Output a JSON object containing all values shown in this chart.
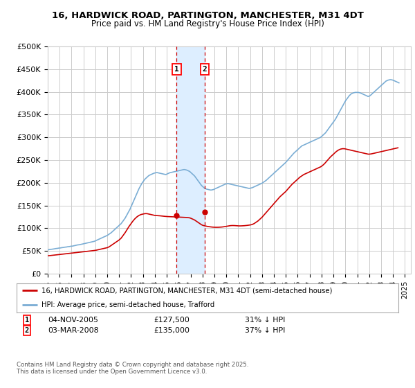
{
  "title": "16, HARDWICK ROAD, PARTINGTON, MANCHESTER, M31 4DT",
  "subtitle": "Price paid vs. HM Land Registry's House Price Index (HPI)",
  "red_label": "16, HARDWICK ROAD, PARTINGTON, MANCHESTER, M31 4DT (semi-detached house)",
  "blue_label": "HPI: Average price, semi-detached house, Trafford",
  "footnote": "Contains HM Land Registry data © Crown copyright and database right 2025.\nThis data is licensed under the Open Government Licence v3.0.",
  "transaction1": {
    "label": "1",
    "date": "04-NOV-2005",
    "price": "£127,500",
    "note": "31% ↓ HPI"
  },
  "transaction2": {
    "label": "2",
    "date": "03-MAR-2008",
    "price": "£135,000",
    "note": "37% ↓ HPI"
  },
  "marker1_x": 2005.83,
  "marker2_x": 2008.17,
  "marker1_price": 127500,
  "marker2_price": 135000,
  "ylim": [
    0,
    500000
  ],
  "xlim": [
    1995,
    2025.5
  ],
  "yticks": [
    0,
    50000,
    100000,
    150000,
    200000,
    250000,
    300000,
    350000,
    400000,
    450000,
    500000
  ],
  "ytick_labels": [
    "£0",
    "£50K",
    "£100K",
    "£150K",
    "£200K",
    "£250K",
    "£300K",
    "£350K",
    "£400K",
    "£450K",
    "£500K"
  ],
  "background_color": "#ffffff",
  "grid_color": "#cccccc",
  "red_color": "#cc0000",
  "blue_color": "#7aadd4",
  "shade_color": "#ddeeff",
  "hpi_monthly": {
    "start_year": 1995,
    "start_month": 1,
    "values": [
      52000,
      52500,
      53000,
      53200,
      53500,
      53800,
      54000,
      54500,
      55000,
      55200,
      55500,
      56000,
      56200,
      56500,
      57000,
      57200,
      57500,
      58000,
      58200,
      58500,
      59000,
      59200,
      59500,
      60000,
      60200,
      60500,
      61000,
      61500,
      62000,
      62500,
      63000,
      63200,
      63500,
      64000,
      64500,
      65000,
      65500,
      66000,
      66500,
      67000,
      67500,
      68000,
      68500,
      69000,
      69500,
      70000,
      70500,
      71000,
      72000,
      73000,
      74000,
      75000,
      76000,
      77000,
      78000,
      79000,
      80000,
      81000,
      82000,
      83000,
      84000,
      85500,
      87000,
      88500,
      90000,
      92000,
      94000,
      96000,
      98000,
      100000,
      102000,
      104000,
      106000,
      108000,
      110000,
      113000,
      116000,
      119000,
      122000,
      126000,
      130000,
      134000,
      138000,
      142000,
      147000,
      152000,
      157000,
      162000,
      167000,
      172000,
      177000,
      182000,
      187000,
      191000,
      195000,
      199000,
      202000,
      205000,
      208000,
      210000,
      212000,
      214000,
      216000,
      217000,
      218000,
      219000,
      220000,
      221000,
      221500,
      222000,
      222500,
      222000,
      221500,
      221000,
      220500,
      220000,
      219500,
      219000,
      218500,
      218000,
      219000,
      220000,
      221000,
      222000,
      222500,
      223000,
      223500,
      224000,
      224500,
      225000,
      225500,
      226000,
      226500,
      227000,
      227500,
      228000,
      228500,
      229000,
      229000,
      228500,
      228000,
      227000,
      226000,
      225000,
      223000,
      221000,
      219000,
      217000,
      215000,
      212000,
      209000,
      206000,
      203000,
      200000,
      197000,
      194000,
      192000,
      190000,
      188000,
      187000,
      186000,
      185500,
      185000,
      184500,
      184000,
      184000,
      184500,
      185000,
      186000,
      187000,
      188000,
      189000,
      190000,
      191000,
      192000,
      193000,
      194000,
      195000,
      196000,
      197000,
      197500,
      198000,
      198000,
      197500,
      197000,
      196500,
      196000,
      195500,
      195000,
      194500,
      194000,
      193500,
      193000,
      192500,
      192000,
      191500,
      191000,
      190500,
      190000,
      189500,
      189000,
      188500,
      188000,
      187500,
      188000,
      188500,
      189000,
      190000,
      191000,
      192000,
      193000,
      194000,
      195000,
      196000,
      197000,
      198000,
      199000,
      200500,
      202000,
      203500,
      205000,
      207000,
      209000,
      211000,
      213000,
      215000,
      217000,
      219000,
      221000,
      223000,
      225000,
      227000,
      229000,
      231000,
      233000,
      235000,
      237000,
      239000,
      241000,
      243000,
      245000,
      247500,
      250000,
      252500,
      255000,
      257500,
      260000,
      262500,
      265000,
      267000,
      269000,
      271000,
      273000,
      275000,
      277000,
      279000,
      281000,
      282000,
      283000,
      284000,
      285000,
      286000,
      287000,
      288000,
      289000,
      290000,
      291000,
      292000,
      293000,
      294000,
      295000,
      296000,
      297000,
      298000,
      299000,
      300000,
      302000,
      304000,
      306000,
      308000,
      310000,
      313000,
      316000,
      319000,
      322000,
      325000,
      328000,
      331000,
      334000,
      337000,
      340000,
      344000,
      348000,
      352000,
      356000,
      360000,
      364000,
      368000,
      372000,
      376000,
      380000,
      383000,
      386000,
      389000,
      392000,
      394000,
      396000,
      397000,
      398000,
      398500,
      399000,
      399000,
      399000,
      399000,
      398500,
      398000,
      397000,
      396000,
      395000,
      394000,
      393000,
      392000,
      391000,
      390000,
      391000,
      392000,
      394000,
      396000,
      398000,
      400000,
      402000,
      404000,
      406000,
      408000,
      410000,
      412000,
      414000,
      416000,
      418000,
      420000,
      422000,
      424000,
      425000,
      426000,
      426500,
      427000,
      427000,
      426500,
      426000,
      425000,
      424000,
      423000,
      422000,
      421000,
      420000
    ]
  },
  "red_monthly": {
    "start_year": 1995,
    "start_month": 1,
    "values": [
      39000,
      39200,
      39500,
      39800,
      40000,
      40200,
      40500,
      40800,
      41000,
      41200,
      41500,
      41800,
      42000,
      42200,
      42500,
      42800,
      43000,
      43200,
      43500,
      43800,
      44000,
      44200,
      44500,
      44800,
      45000,
      45200,
      45500,
      45800,
      46000,
      46200,
      46500,
      46800,
      47000,
      47200,
      47500,
      47800,
      48000,
      48200,
      48500,
      48800,
      49000,
      49200,
      49500,
      49800,
      50000,
      50200,
      50500,
      50800,
      51000,
      51500,
      52000,
      52500,
      53000,
      53500,
      54000,
      54500,
      55000,
      55500,
      56000,
      56500,
      57000,
      58000,
      59000,
      60500,
      62000,
      63500,
      65000,
      66500,
      68000,
      69500,
      71000,
      72500,
      74000,
      76000,
      78000,
      81000,
      84000,
      87000,
      90000,
      93500,
      97000,
      100500,
      104000,
      107000,
      110000,
      113000,
      116000,
      118500,
      121000,
      123000,
      125000,
      126500,
      128000,
      129000,
      130000,
      130500,
      131000,
      131500,
      132000,
      132000,
      132000,
      131500,
      131000,
      130500,
      130000,
      129500,
      129000,
      128500,
      128000,
      127800,
      127600,
      127500,
      127400,
      127200,
      127000,
      126800,
      126500,
      126200,
      126000,
      125800,
      125600,
      125500,
      125400,
      125300,
      125200,
      125100,
      125000,
      124900,
      124800,
      124700,
      124600,
      124500,
      124400,
      124300,
      124200,
      124100,
      124000,
      123900,
      123800,
      123700,
      123500,
      123300,
      123000,
      122700,
      122000,
      121000,
      120000,
      119000,
      118000,
      116500,
      115000,
      113500,
      112000,
      110500,
      109000,
      107500,
      106500,
      105800,
      105200,
      104700,
      104200,
      103800,
      103400,
      103100,
      102800,
      102500,
      102300,
      102100,
      102000,
      101900,
      101900,
      101900,
      102000,
      102100,
      102200,
      102400,
      102600,
      102900,
      103200,
      103600,
      104000,
      104400,
      104800,
      105200,
      105500,
      105700,
      105800,
      105800,
      105700,
      105600,
      105400,
      105200,
      105000,
      104900,
      104900,
      105000,
      105100,
      105200,
      105400,
      105600,
      105800,
      106100,
      106400,
      106700,
      107000,
      107500,
      108000,
      109000,
      110000,
      111500,
      113000,
      114500,
      116000,
      118000,
      120000,
      122000,
      124000,
      126500,
      129000,
      131500,
      134000,
      136500,
      139000,
      141500,
      144000,
      146500,
      149000,
      151500,
      154000,
      156500,
      159000,
      161500,
      164000,
      166500,
      169000,
      171000,
      173000,
      175000,
      177000,
      179000,
      181000,
      183500,
      186000,
      188500,
      191000,
      193500,
      196000,
      198000,
      200000,
      202000,
      204000,
      206000,
      208000,
      210000,
      212000,
      213500,
      215000,
      216500,
      218000,
      219000,
      220000,
      221000,
      222000,
      223000,
      224000,
      225000,
      226000,
      227000,
      228000,
      229000,
      230000,
      231000,
      232000,
      233000,
      234000,
      235000,
      236500,
      238000,
      240000,
      242000,
      244500,
      247000,
      249500,
      252000,
      254500,
      257000,
      259000,
      261000,
      263000,
      265000,
      267000,
      269000,
      270500,
      272000,
      273000,
      274000,
      274500,
      275000,
      275000,
      275000,
      274500,
      274000,
      273500,
      273000,
      272500,
      272000,
      271500,
      271000,
      270500,
      270000,
      269500,
      269000,
      268500,
      268000,
      267500,
      267000,
      266500,
      266000,
      265500,
      265000,
      264500,
      264000,
      263500,
      263000,
      263000,
      263200,
      263500,
      264000,
      264500,
      265000,
      265500,
      266000,
      266500,
      267000,
      267500,
      268000,
      268500,
      269000,
      269500,
      270000,
      270500,
      271000,
      271500,
      272000,
      272500,
      273000,
      273500,
      274000,
      274500,
      275000,
      275500,
      276000,
      276500,
      277000
    ]
  }
}
